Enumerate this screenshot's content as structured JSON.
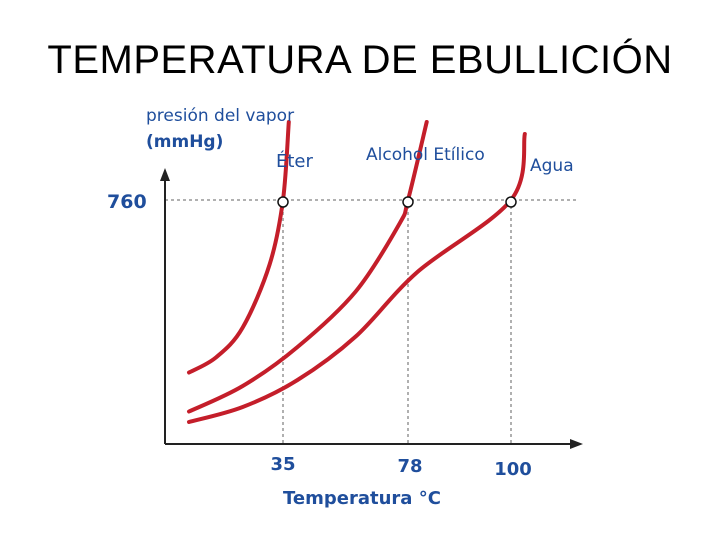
{
  "slide": {
    "title": "TEMPERATURA DE EBULLICIÓN"
  },
  "chart_data": {
    "type": "line",
    "title": "",
    "ylabel_line1": "presión del vapor",
    "ylabel_line2": "(mmHg)",
    "xlabel": "Temperatura °C",
    "x_ticks": [
      "35",
      "78",
      "100"
    ],
    "y_ticks": [
      "760"
    ],
    "reference_y": 760,
    "xlim": [
      -5,
      120
    ],
    "ylim": [
      0,
      1000
    ],
    "grid": false,
    "series": [
      {
        "name": "Éter",
        "color": "#c41e2a",
        "boiling_point": 35,
        "x": [
          0,
          10,
          20,
          30,
          35,
          37
        ],
        "y": [
          185,
          235,
          335,
          545,
          760,
          1020
        ]
      },
      {
        "name": "Alcohol Etílico",
        "color": "#c41e2a",
        "boiling_point": 78,
        "x": [
          0,
          20,
          40,
          60,
          75,
          78,
          82
        ],
        "y": [
          55,
          140,
          270,
          455,
          680,
          760,
          1020
        ]
      },
      {
        "name": "Agua",
        "color": "#c41e2a",
        "boiling_point": 100,
        "x": [
          0,
          20,
          40,
          60,
          80,
          100,
          105
        ],
        "y": [
          20,
          70,
          160,
          305,
          520,
          760,
          980
        ]
      }
    ],
    "colors": {
      "curve": "#c41e2a",
      "axis": "#222222",
      "axis_text": "#1f4e9c",
      "guide": "#b0b0b0"
    }
  }
}
